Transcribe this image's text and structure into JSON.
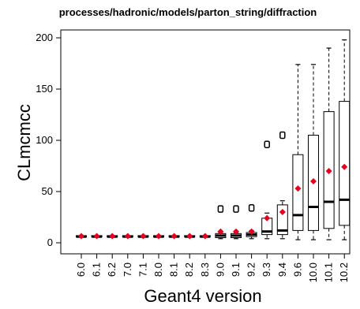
{
  "chart_data": {
    "type": "boxplot",
    "title": "processes/hadronic/models/parton_string/diffraction",
    "xlabel": "Geant4 version",
    "ylabel": "CLmcmcc",
    "ylim": [
      0,
      200
    ],
    "yticks": [
      0,
      50,
      100,
      150,
      200
    ],
    "grid": false,
    "legend": "none",
    "colors": {
      "box": "#000000",
      "median": "#000000",
      "mean": "#e8001c"
    },
    "categories": [
      "6.0",
      "6.1",
      "6.2",
      "7.0",
      "7.1",
      "8.0",
      "8.1",
      "8.2",
      "8.3",
      "9.0",
      "9.1",
      "9.2",
      "9.3",
      "9.4",
      "9.6",
      "10.0",
      "10.1",
      "10.2"
    ],
    "boxes": [
      {
        "whisker_low": 6,
        "q1": 6,
        "median": 6,
        "q3": 7,
        "whisker_high": 7,
        "mean": 6.5,
        "outliers": []
      },
      {
        "whisker_low": 6,
        "q1": 6,
        "median": 6,
        "q3": 7,
        "whisker_high": 7,
        "mean": 6.5,
        "outliers": []
      },
      {
        "whisker_low": 6,
        "q1": 6,
        "median": 6,
        "q3": 7,
        "whisker_high": 7,
        "mean": 6.5,
        "outliers": []
      },
      {
        "whisker_low": 6,
        "q1": 6,
        "median": 6,
        "q3": 7,
        "whisker_high": 7,
        "mean": 6.5,
        "outliers": []
      },
      {
        "whisker_low": 6,
        "q1": 6,
        "median": 6,
        "q3": 7,
        "whisker_high": 7,
        "mean": 6.5,
        "outliers": []
      },
      {
        "whisker_low": 6,
        "q1": 6,
        "median": 6,
        "q3": 7,
        "whisker_high": 7,
        "mean": 6.5,
        "outliers": []
      },
      {
        "whisker_low": 6,
        "q1": 6,
        "median": 6,
        "q3": 7,
        "whisker_high": 7,
        "mean": 6.5,
        "outliers": []
      },
      {
        "whisker_low": 6,
        "q1": 6,
        "median": 6,
        "q3": 7,
        "whisker_high": 7,
        "mean": 6.5,
        "outliers": []
      },
      {
        "whisker_low": 6,
        "q1": 6,
        "median": 6,
        "q3": 7,
        "whisker_high": 7,
        "mean": 6.5,
        "outliers": []
      },
      {
        "whisker_low": 4,
        "q1": 5,
        "median": 7,
        "q3": 9,
        "whisker_high": 10,
        "mean": 11,
        "outliers": [
          33
        ]
      },
      {
        "whisker_low": 4,
        "q1": 5,
        "median": 7,
        "q3": 9,
        "whisker_high": 10,
        "mean": 11,
        "outliers": [
          33
        ]
      },
      {
        "whisker_low": 4,
        "q1": 6,
        "median": 8,
        "q3": 10,
        "whisker_high": 12,
        "mean": 11,
        "outliers": [
          34
        ]
      },
      {
        "whisker_low": 4,
        "q1": 8,
        "median": 11,
        "q3": 24,
        "whisker_high": 29,
        "mean": 24,
        "outliers": [
          96
        ]
      },
      {
        "whisker_low": 4,
        "q1": 8,
        "median": 12,
        "q3": 37,
        "whisker_high": 41,
        "mean": 30,
        "outliers": [
          105
        ]
      },
      {
        "whisker_low": 3,
        "q1": 12,
        "median": 27,
        "q3": 86,
        "whisker_high": 174,
        "mean": 53,
        "outliers": []
      },
      {
        "whisker_low": 3,
        "q1": 12,
        "median": 35,
        "q3": 105,
        "whisker_high": 174,
        "mean": 60,
        "outliers": []
      },
      {
        "whisker_low": 3,
        "q1": 14,
        "median": 40,
        "q3": 128,
        "whisker_high": 190,
        "mean": 70,
        "outliers": []
      },
      {
        "whisker_low": 3,
        "q1": 17,
        "median": 42,
        "q3": 138,
        "whisker_high": 198,
        "mean": 74,
        "outliers": []
      }
    ]
  }
}
